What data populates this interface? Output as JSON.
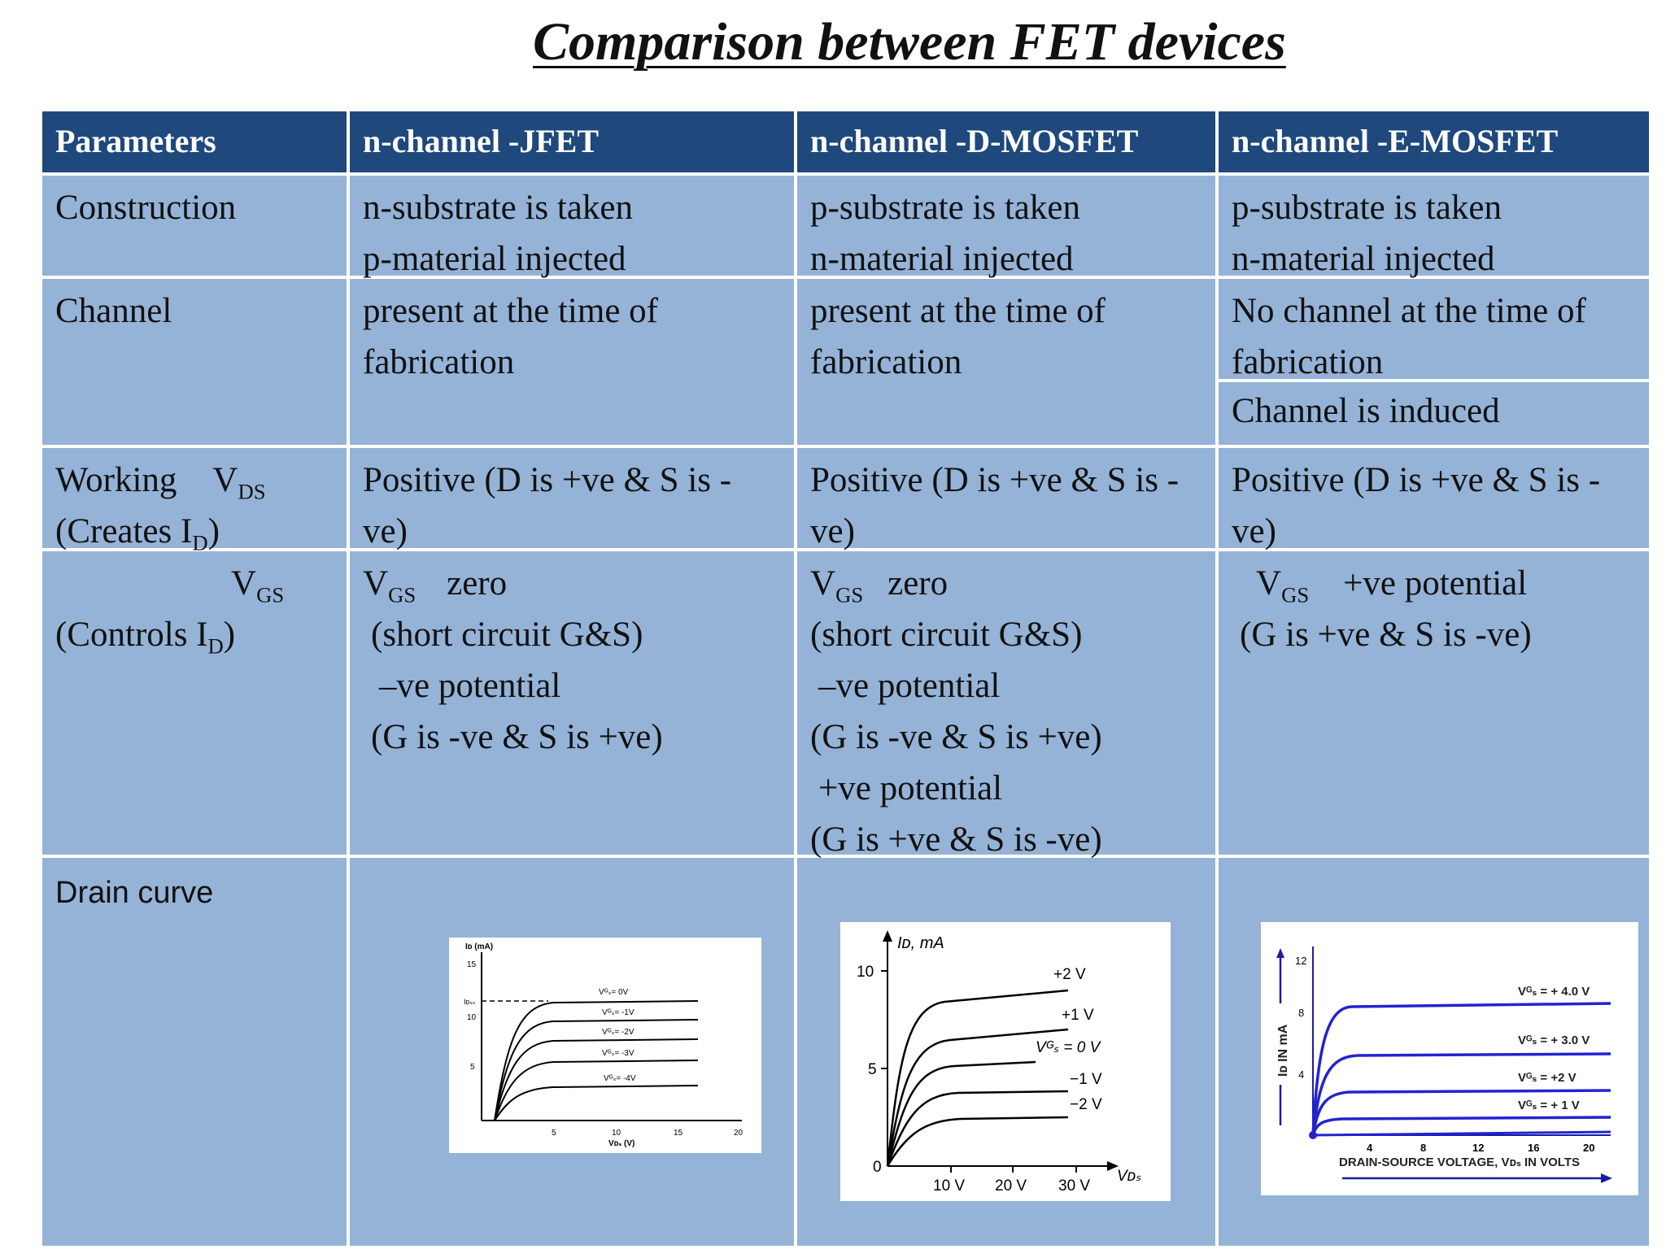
{
  "title": "Comparison between FET devices",
  "header": {
    "parameters": "Parameters",
    "jfet": "n-channel -JFET",
    "dmosfet": "n-channel -D-MOSFET",
    "emosfet": "n-channel -E-MOSFET"
  },
  "construction": {
    "label": "Construction",
    "jfet": [
      "n-substrate is taken",
      "p-material injected"
    ],
    "dmosfet": [
      "p-substrate is taken",
      "n-material injected"
    ],
    "emosfet": [
      "p-substrate is taken",
      "n-material injected"
    ]
  },
  "channel": {
    "label": "Channel",
    "jfet": [
      "present  at the time of",
      "fabrication"
    ],
    "dmosfet": [
      "present  at the time of",
      "fabrication"
    ],
    "emosfet": [
      "No channel    at the time of",
      "fabrication"
    ],
    "emosfet_induced": "Channel is induced"
  },
  "working": {
    "label_main": "Working",
    "v": "V",
    "sub_ds": "DS",
    "creates_prefix": "(Creates I",
    "sub_d": "D",
    "close": ")",
    "jfet": [
      "Positive (D is +ve & S is -",
      "ve)"
    ],
    "dmosfet": [
      "Positive (D is +ve & S is -",
      "ve)"
    ],
    "emosfet": [
      "Positive (D is +ve & S is -",
      "ve)"
    ]
  },
  "vgs": {
    "v": "V",
    "sub_gs": "GS",
    "controls_prefix": "(Controls I",
    "sub_d": "D",
    "close": ")",
    "zero": "zero",
    "positive": "+ve potential",
    "jfet": [
      "(short circuit G&S)",
      "–ve potential",
      "(G  is -ve & S is +ve)"
    ],
    "dmosfet": [
      "(short circuit G&S)",
      "–ve potential",
      "(G  is -ve & S is +ve)",
      "+ve potential",
      "(G is +ve & S is -ve)"
    ],
    "emosfet": [
      "(G is +ve & S is -ve)"
    ]
  },
  "drain_curve": {
    "label": "Drain curve",
    "jfet_plot": {
      "y_axis": "Iᴅ (mA)",
      "y_ticks": [
        "15",
        "10",
        "5"
      ],
      "y_mark": "Iᴅₛₛ",
      "x_ticks": [
        "5",
        "10",
        "15",
        "20"
      ],
      "x_axis": "Vᴅₛ (V)",
      "curve_labels": [
        "Vᴳₛ= 0V",
        "Vᴳₛ= -1V",
        "Vᴳₛ= -2V",
        "Vᴳₛ= -3V",
        "Vᴳₛ= -4V"
      ]
    },
    "dmos_plot": {
      "y_axis": "Iᴅ, mA",
      "y_ticks": [
        "10",
        "5",
        "0"
      ],
      "x_ticks": [
        "10 V",
        "20 V",
        "30 V"
      ],
      "x_axis": "Vᴅₛ",
      "curve_labels": [
        "+2 V",
        "+1 V",
        "Vᴳₛ = 0 V",
        "−1 V",
        "−2 V"
      ]
    },
    "emos_plot": {
      "y_axis": "Iᴅ IN mA",
      "y_ticks": [
        "12",
        "8",
        "4"
      ],
      "x_ticks": [
        "4",
        "8",
        "12",
        "16",
        "20"
      ],
      "x_axis": "DRAIN-SOURCE VOLTAGE, Vᴅₛ IN VOLTS",
      "curve_labels": [
        "Vᴳₛ = + 4.0 V",
        "Vᴳₛ = + 3.0 V",
        "Vᴳₛ = +2 V",
        "Vᴳₛ = + 1 V"
      ]
    }
  }
}
